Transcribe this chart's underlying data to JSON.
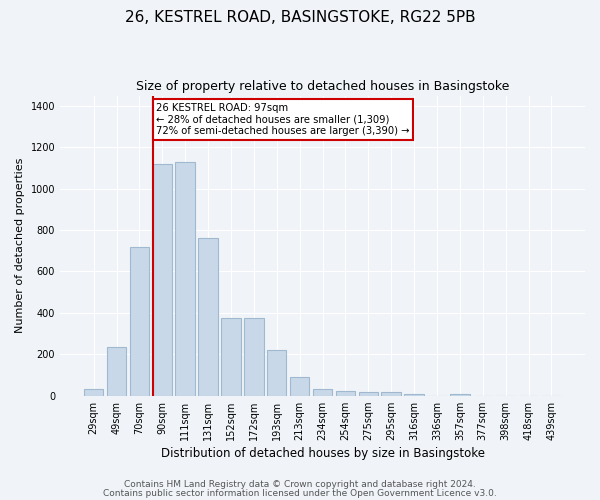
{
  "title1": "26, KESTREL ROAD, BASINGSTOKE, RG22 5PB",
  "title2": "Size of property relative to detached houses in Basingstoke",
  "xlabel": "Distribution of detached houses by size in Basingstoke",
  "ylabel": "Number of detached properties",
  "categories": [
    "29sqm",
    "49sqm",
    "70sqm",
    "90sqm",
    "111sqm",
    "131sqm",
    "152sqm",
    "172sqm",
    "193sqm",
    "213sqm",
    "234sqm",
    "254sqm",
    "275sqm",
    "295sqm",
    "316sqm",
    "336sqm",
    "357sqm",
    "377sqm",
    "398sqm",
    "418sqm",
    "439sqm"
  ],
  "values": [
    30,
    235,
    720,
    1120,
    1130,
    760,
    375,
    375,
    220,
    90,
    30,
    25,
    20,
    18,
    10,
    0,
    8,
    0,
    0,
    0,
    0
  ],
  "bar_color": "#c8d8e8",
  "bar_edge_color": "#a0b8d0",
  "vline_color": "#cc0000",
  "annotation_text": "26 KESTREL ROAD: 97sqm\n← 28% of detached houses are smaller (1,309)\n72% of semi-detached houses are larger (3,390) →",
  "annotation_box_color": "white",
  "annotation_box_edge": "#cc0000",
  "ylim": [
    0,
    1450
  ],
  "yticks": [
    0,
    200,
    400,
    600,
    800,
    1000,
    1200,
    1400
  ],
  "footer1": "Contains HM Land Registry data © Crown copyright and database right 2024.",
  "footer2": "Contains public sector information licensed under the Open Government Licence v3.0.",
  "bg_color": "#f0f4f8",
  "plot_bg_color": "#f0f4f8",
  "title1_fontsize": 11,
  "title2_fontsize": 9,
  "xlabel_fontsize": 8.5,
  "ylabel_fontsize": 8,
  "tick_fontsize": 7,
  "footer_fontsize": 6.5,
  "vline_bin_index": 3
}
